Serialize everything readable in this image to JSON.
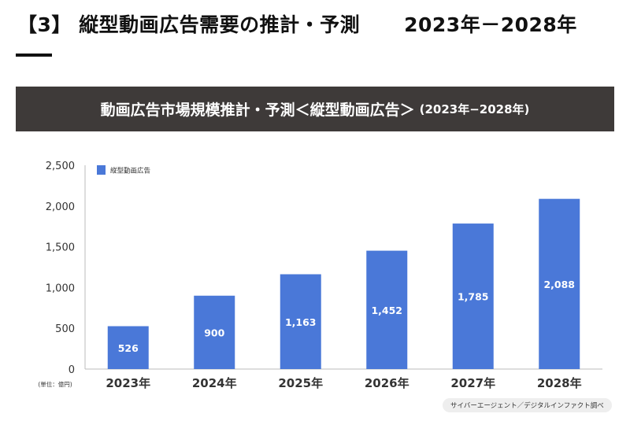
{
  "header": {
    "title": "【3】 縦型動画広告需要の推計・予測",
    "range": "2023年－2028年"
  },
  "banner": {
    "title": "動画広告市場規模推計・予測＜縦型動画広告＞",
    "subtitle": "(2023年−2028年)"
  },
  "chart_data": {
    "type": "bar",
    "title": "動画広告市場規模推計・予測＜縦型動画広告＞ (2023年−2028年)",
    "categories": [
      "2023年",
      "2024年",
      "2025年",
      "2026年",
      "2027年",
      "2028年"
    ],
    "series": [
      {
        "name": "縦型動画広告",
        "values": [
          526,
          900,
          1163,
          1452,
          1785,
          2088
        ],
        "color": "#4a78d8"
      }
    ],
    "value_labels": [
      "526",
      "900",
      "1,163",
      "1,452",
      "1,785",
      "2,088"
    ],
    "ylim": [
      0,
      2500
    ],
    "yticks": [
      0,
      500,
      1000,
      1500,
      2000,
      2500
    ],
    "ytick_labels": [
      "0",
      "500",
      "1,000",
      "1,500",
      "2,000",
      "2,500"
    ],
    "ylabel": "(単位：億円)",
    "xlabel": "",
    "legend": "top-left",
    "grid": false
  },
  "source": "サイバーエージェント／デジタルインファクト調べ"
}
